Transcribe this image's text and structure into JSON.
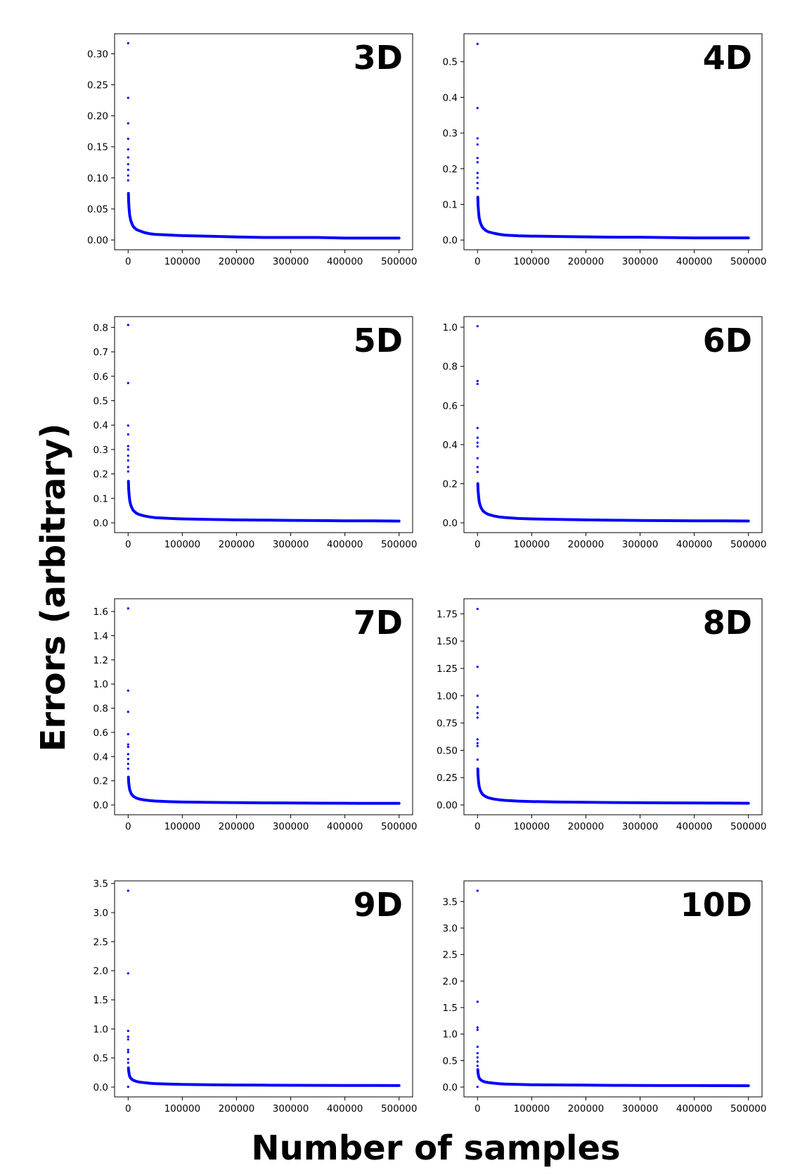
{
  "figure": {
    "ylabel": "Errors (arbitrary)",
    "xlabel": "Number of samples"
  },
  "chart_data": [
    {
      "type": "scatter",
      "title": "3D",
      "color": "#0000ff",
      "xlim": [
        -25000,
        525000
      ],
      "ylim": [
        -0.0158,
        0.3322
      ],
      "xticks": [
        0,
        100000,
        200000,
        300000,
        400000,
        500000
      ],
      "xtick_labels": [
        "0",
        "100000",
        "200000",
        "300000",
        "400000",
        "500000"
      ],
      "yticks": [
        0.0,
        0.05,
        0.1,
        0.15,
        0.2,
        0.25,
        0.3
      ],
      "ytick_labels": [
        "0.00",
        "0.05",
        "0.10",
        "0.15",
        "0.20",
        "0.25",
        "0.30"
      ],
      "x": [
        0,
        0,
        0,
        0,
        0,
        0,
        0,
        0,
        0,
        0,
        500,
        1000,
        2000,
        3000,
        5000,
        7500,
        10000,
        15000,
        20000,
        30000,
        40000,
        50000,
        75000,
        100000,
        150000,
        200000,
        250000,
        300000,
        350000,
        400000,
        450000,
        500000
      ],
      "y": [
        0.317,
        0.229,
        0.188,
        0.163,
        0.146,
        0.133,
        0.122,
        0.113,
        0.104,
        0.096,
        0.075,
        0.062,
        0.048,
        0.039,
        0.031,
        0.025,
        0.021,
        0.017,
        0.015,
        0.012,
        0.01,
        0.009,
        0.008,
        0.007,
        0.006,
        0.005,
        0.004,
        0.004,
        0.004,
        0.003,
        0.003,
        0.003
      ]
    },
    {
      "type": "scatter",
      "title": "4D",
      "color": "#0000ff",
      "xlim": [
        -25000,
        525000
      ],
      "ylim": [
        -0.0273,
        0.5783
      ],
      "xticks": [
        0,
        100000,
        200000,
        300000,
        400000,
        500000
      ],
      "xtick_labels": [
        "0",
        "100000",
        "200000",
        "300000",
        "400000",
        "500000"
      ],
      "yticks": [
        0.0,
        0.1,
        0.2,
        0.3,
        0.4,
        0.5
      ],
      "ytick_labels": [
        "0.0",
        "0.1",
        "0.2",
        "0.3",
        "0.4",
        "0.5"
      ],
      "x": [
        0,
        0,
        0,
        0,
        0,
        0,
        0,
        0,
        0,
        0,
        500,
        1000,
        2000,
        3000,
        5000,
        7500,
        10000,
        15000,
        20000,
        30000,
        40000,
        50000,
        75000,
        100000,
        150000,
        200000,
        250000,
        300000,
        350000,
        400000,
        450000,
        500000
      ],
      "y": [
        0.55,
        0.37,
        0.285,
        0.268,
        0.23,
        0.218,
        0.188,
        0.175,
        0.16,
        0.145,
        0.12,
        0.1,
        0.078,
        0.063,
        0.05,
        0.04,
        0.034,
        0.027,
        0.023,
        0.019,
        0.016,
        0.014,
        0.012,
        0.011,
        0.01,
        0.009,
        0.008,
        0.008,
        0.007,
        0.006,
        0.006,
        0.006
      ]
    },
    {
      "type": "scatter",
      "title": "5D",
      "color": "#0000ff",
      "xlim": [
        -25000,
        525000
      ],
      "ylim": [
        -0.0402,
        0.8442
      ],
      "xticks": [
        0,
        100000,
        200000,
        300000,
        400000,
        500000
      ],
      "xtick_labels": [
        "0",
        "100000",
        "200000",
        "300000",
        "400000",
        "500000"
      ],
      "yticks": [
        0.0,
        0.1,
        0.2,
        0.3,
        0.4,
        0.5,
        0.6,
        0.7,
        0.8
      ],
      "ytick_labels": [
        "0.0",
        "0.1",
        "0.2",
        "0.3",
        "0.4",
        "0.5",
        "0.6",
        "0.7",
        "0.8"
      ],
      "x": [
        0,
        0,
        0,
        0,
        0,
        0,
        0,
        0,
        0,
        0,
        500,
        1000,
        2000,
        3000,
        5000,
        7500,
        10000,
        15000,
        20000,
        30000,
        40000,
        50000,
        75000,
        100000,
        150000,
        200000,
        250000,
        300000,
        350000,
        400000,
        450000,
        500000
      ],
      "y": [
        0.81,
        0.572,
        0.398,
        0.362,
        0.314,
        0.3,
        0.275,
        0.255,
        0.228,
        0.21,
        0.17,
        0.14,
        0.11,
        0.09,
        0.072,
        0.058,
        0.049,
        0.04,
        0.034,
        0.028,
        0.024,
        0.021,
        0.018,
        0.016,
        0.014,
        0.012,
        0.011,
        0.01,
        0.009,
        0.008,
        0.008,
        0.007
      ]
    },
    {
      "type": "scatter",
      "title": "6D",
      "color": "#0000ff",
      "xlim": [
        -25000,
        525000
      ],
      "ylim": [
        -0.0502,
        1.0542
      ],
      "xticks": [
        0,
        100000,
        200000,
        300000,
        400000,
        500000
      ],
      "xtick_labels": [
        "0",
        "100000",
        "200000",
        "300000",
        "400000",
        "500000"
      ],
      "yticks": [
        0.0,
        0.2,
        0.4,
        0.6,
        0.8,
        1.0
      ],
      "ytick_labels": [
        "0.0",
        "0.2",
        "0.4",
        "0.6",
        "0.8",
        "1.0"
      ],
      "x": [
        0,
        0,
        0,
        0,
        0,
        0,
        0,
        0,
        0,
        0,
        500,
        1000,
        2000,
        3000,
        5000,
        7500,
        10000,
        15000,
        20000,
        30000,
        40000,
        50000,
        75000,
        100000,
        150000,
        200000,
        250000,
        300000,
        350000,
        400000,
        450000,
        500000
      ],
      "y": [
        1.005,
        0.725,
        0.71,
        0.485,
        0.435,
        0.41,
        0.39,
        0.33,
        0.285,
        0.26,
        0.2,
        0.17,
        0.135,
        0.11,
        0.088,
        0.072,
        0.061,
        0.05,
        0.043,
        0.035,
        0.03,
        0.027,
        0.022,
        0.02,
        0.017,
        0.015,
        0.013,
        0.012,
        0.011,
        0.01,
        0.01,
        0.009
      ]
    },
    {
      "type": "scatter",
      "title": "7D",
      "color": "#0000ff",
      "xlim": [
        -25000,
        525000
      ],
      "ylim": [
        -0.0812,
        1.7052
      ],
      "xticks": [
        0,
        100000,
        200000,
        300000,
        400000,
        500000
      ],
      "xtick_labels": [
        "0",
        "100000",
        "200000",
        "300000",
        "400000",
        "500000"
      ],
      "yticks": [
        0.0,
        0.2,
        0.4,
        0.6,
        0.8,
        1.0,
        1.2,
        1.4,
        1.6
      ],
      "ytick_labels": [
        "0.0",
        "0.2",
        "0.4",
        "0.6",
        "0.8",
        "1.0",
        "1.2",
        "1.4",
        "1.6"
      ],
      "x": [
        0,
        0,
        0,
        0,
        0,
        0,
        0,
        0,
        0,
        0,
        500,
        1000,
        2000,
        3000,
        5000,
        7500,
        10000,
        15000,
        20000,
        30000,
        40000,
        50000,
        75000,
        100000,
        150000,
        200000,
        250000,
        300000,
        350000,
        400000,
        450000,
        500000
      ],
      "y": [
        1.625,
        0.945,
        0.77,
        0.585,
        0.5,
        0.48,
        0.42,
        0.38,
        0.34,
        0.3,
        0.23,
        0.19,
        0.15,
        0.125,
        0.1,
        0.082,
        0.07,
        0.058,
        0.05,
        0.041,
        0.036,
        0.032,
        0.027,
        0.024,
        0.021,
        0.019,
        0.017,
        0.016,
        0.015,
        0.014,
        0.013,
        0.013
      ]
    },
    {
      "type": "scatter",
      "title": "8D",
      "color": "#0000ff",
      "xlim": [
        -25000,
        525000
      ],
      "ylim": [
        -0.0899,
        1.8879
      ],
      "xticks": [
        0,
        100000,
        200000,
        300000,
        400000,
        500000
      ],
      "xtick_labels": [
        "0",
        "100000",
        "200000",
        "300000",
        "400000",
        "500000"
      ],
      "yticks": [
        0.0,
        0.25,
        0.5,
        0.75,
        1.0,
        1.25,
        1.5,
        1.75
      ],
      "ytick_labels": [
        "0.00",
        "0.25",
        "0.50",
        "0.75",
        "1.00",
        "1.25",
        "1.50",
        "1.75"
      ],
      "x": [
        0,
        0,
        0,
        0,
        0,
        0,
        0,
        0,
        0,
        0,
        500,
        1000,
        2000,
        3000,
        5000,
        7500,
        10000,
        15000,
        20000,
        30000,
        40000,
        50000,
        75000,
        100000,
        150000,
        200000,
        250000,
        300000,
        350000,
        400000,
        450000,
        500000
      ],
      "y": [
        1.795,
        1.265,
        1.0,
        0.895,
        0.84,
        0.8,
        0.6,
        0.565,
        0.54,
        0.415,
        0.33,
        0.27,
        0.21,
        0.17,
        0.135,
        0.11,
        0.094,
        0.077,
        0.066,
        0.054,
        0.047,
        0.042,
        0.035,
        0.031,
        0.027,
        0.024,
        0.022,
        0.02,
        0.019,
        0.018,
        0.017,
        0.016
      ]
    },
    {
      "type": "scatter",
      "title": "9D",
      "color": "#0000ff",
      "xlim": [
        -25000,
        525000
      ],
      "ylim": [
        -0.1688,
        3.5448
      ],
      "xticks": [
        0,
        100000,
        200000,
        300000,
        400000,
        500000
      ],
      "xtick_labels": [
        "0",
        "100000",
        "200000",
        "300000",
        "400000",
        "500000"
      ],
      "yticks": [
        0.0,
        0.5,
        1.0,
        1.5,
        2.0,
        2.5,
        3.0,
        3.5
      ],
      "ytick_labels": [
        "0.0",
        "0.5",
        "1.0",
        "1.5",
        "2.0",
        "2.5",
        "3.0",
        "3.5"
      ],
      "x": [
        0,
        0,
        0,
        0,
        0,
        0,
        0,
        0,
        0,
        0,
        500,
        1000,
        2000,
        3000,
        5000,
        7500,
        10000,
        15000,
        20000,
        30000,
        40000,
        50000,
        75000,
        100000,
        150000,
        200000,
        250000,
        300000,
        350000,
        400000,
        450000,
        500000
      ],
      "y": [
        3.376,
        1.955,
        0.965,
        0.865,
        0.82,
        0.64,
        0.6,
        0.48,
        0.42,
        0.005,
        0.33,
        0.28,
        0.22,
        0.18,
        0.15,
        0.13,
        0.115,
        0.098,
        0.088,
        0.075,
        0.066,
        0.06,
        0.051,
        0.046,
        0.04,
        0.036,
        0.033,
        0.031,
        0.029,
        0.028,
        0.027,
        0.026
      ]
    },
    {
      "type": "scatter",
      "title": "10D",
      "color": "#0000ff",
      "xlim": [
        -25000,
        525000
      ],
      "ylim": [
        -0.1852,
        3.8892
      ],
      "xticks": [
        0,
        100000,
        200000,
        300000,
        400000,
        500000
      ],
      "xtick_labels": [
        "0",
        "100000",
        "200000",
        "300000",
        "400000",
        "500000"
      ],
      "yticks": [
        0.0,
        0.5,
        1.0,
        1.5,
        2.0,
        2.5,
        3.0,
        3.5
      ],
      "ytick_labels": [
        "0.0",
        "0.5",
        "1.0",
        "1.5",
        "2.0",
        "2.5",
        "3.0",
        "3.5"
      ],
      "x": [
        0,
        0,
        0,
        0,
        0,
        0,
        0,
        0,
        0,
        0,
        500,
        1000,
        2000,
        3000,
        5000,
        7500,
        10000,
        15000,
        20000,
        30000,
        40000,
        50000,
        75000,
        100000,
        150000,
        200000,
        250000,
        300000,
        350000,
        400000,
        450000,
        500000
      ],
      "y": [
        3.704,
        1.61,
        1.125,
        1.08,
        0.76,
        0.64,
        0.56,
        0.48,
        0.4,
        0.005,
        0.33,
        0.27,
        0.21,
        0.175,
        0.145,
        0.125,
        0.11,
        0.095,
        0.085,
        0.073,
        0.064,
        0.058,
        0.05,
        0.045,
        0.04,
        0.036,
        0.033,
        0.031,
        0.029,
        0.028,
        0.027,
        0.026
      ]
    }
  ]
}
